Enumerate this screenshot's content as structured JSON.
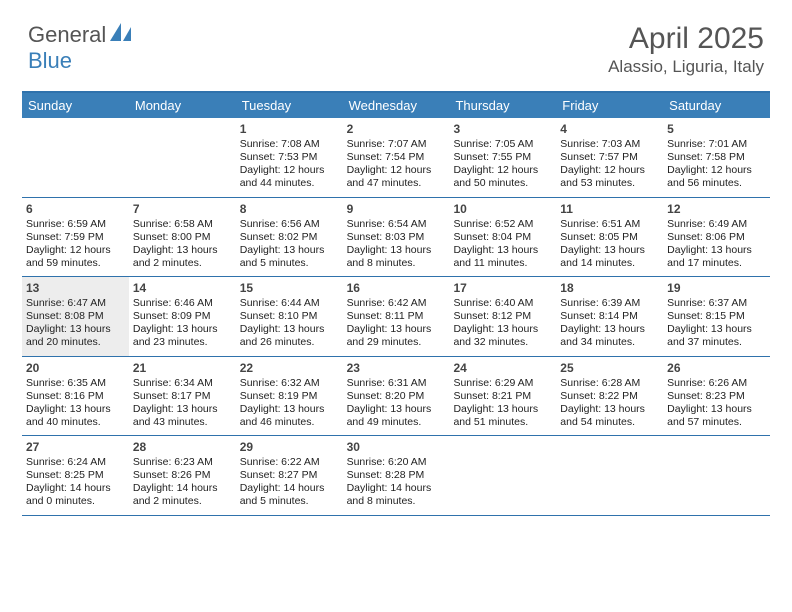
{
  "brand": {
    "part1": "General",
    "part2": "Blue"
  },
  "title": "April 2025",
  "location": "Alassio, Liguria, Italy",
  "colors": {
    "header_bg": "#3a7fb8",
    "border": "#2f72ac",
    "today_bg": "#ededed",
    "text": "#222222",
    "muted": "#555555",
    "white": "#ffffff"
  },
  "typography": {
    "title_fontsize": 30,
    "location_fontsize": 17,
    "dayname_fontsize": 13,
    "daynum_fontsize": 12,
    "info_fontsize": 10.5
  },
  "layout": {
    "columns": 7,
    "rows": 5
  },
  "daynames": [
    "Sunday",
    "Monday",
    "Tuesday",
    "Wednesday",
    "Thursday",
    "Friday",
    "Saturday"
  ],
  "today_day": 13,
  "weeks": [
    [
      {
        "day": null
      },
      {
        "day": null
      },
      {
        "day": 1,
        "sunrise": "7:08 AM",
        "sunset": "7:53 PM",
        "daylight": "12 hours and 44 minutes."
      },
      {
        "day": 2,
        "sunrise": "7:07 AM",
        "sunset": "7:54 PM",
        "daylight": "12 hours and 47 minutes."
      },
      {
        "day": 3,
        "sunrise": "7:05 AM",
        "sunset": "7:55 PM",
        "daylight": "12 hours and 50 minutes."
      },
      {
        "day": 4,
        "sunrise": "7:03 AM",
        "sunset": "7:57 PM",
        "daylight": "12 hours and 53 minutes."
      },
      {
        "day": 5,
        "sunrise": "7:01 AM",
        "sunset": "7:58 PM",
        "daylight": "12 hours and 56 minutes."
      }
    ],
    [
      {
        "day": 6,
        "sunrise": "6:59 AM",
        "sunset": "7:59 PM",
        "daylight": "12 hours and 59 minutes."
      },
      {
        "day": 7,
        "sunrise": "6:58 AM",
        "sunset": "8:00 PM",
        "daylight": "13 hours and 2 minutes."
      },
      {
        "day": 8,
        "sunrise": "6:56 AM",
        "sunset": "8:02 PM",
        "daylight": "13 hours and 5 minutes."
      },
      {
        "day": 9,
        "sunrise": "6:54 AM",
        "sunset": "8:03 PM",
        "daylight": "13 hours and 8 minutes."
      },
      {
        "day": 10,
        "sunrise": "6:52 AM",
        "sunset": "8:04 PM",
        "daylight": "13 hours and 11 minutes."
      },
      {
        "day": 11,
        "sunrise": "6:51 AM",
        "sunset": "8:05 PM",
        "daylight": "13 hours and 14 minutes."
      },
      {
        "day": 12,
        "sunrise": "6:49 AM",
        "sunset": "8:06 PM",
        "daylight": "13 hours and 17 minutes."
      }
    ],
    [
      {
        "day": 13,
        "sunrise": "6:47 AM",
        "sunset": "8:08 PM",
        "daylight": "13 hours and 20 minutes."
      },
      {
        "day": 14,
        "sunrise": "6:46 AM",
        "sunset": "8:09 PM",
        "daylight": "13 hours and 23 minutes."
      },
      {
        "day": 15,
        "sunrise": "6:44 AM",
        "sunset": "8:10 PM",
        "daylight": "13 hours and 26 minutes."
      },
      {
        "day": 16,
        "sunrise": "6:42 AM",
        "sunset": "8:11 PM",
        "daylight": "13 hours and 29 minutes."
      },
      {
        "day": 17,
        "sunrise": "6:40 AM",
        "sunset": "8:12 PM",
        "daylight": "13 hours and 32 minutes."
      },
      {
        "day": 18,
        "sunrise": "6:39 AM",
        "sunset": "8:14 PM",
        "daylight": "13 hours and 34 minutes."
      },
      {
        "day": 19,
        "sunrise": "6:37 AM",
        "sunset": "8:15 PM",
        "daylight": "13 hours and 37 minutes."
      }
    ],
    [
      {
        "day": 20,
        "sunrise": "6:35 AM",
        "sunset": "8:16 PM",
        "daylight": "13 hours and 40 minutes."
      },
      {
        "day": 21,
        "sunrise": "6:34 AM",
        "sunset": "8:17 PM",
        "daylight": "13 hours and 43 minutes."
      },
      {
        "day": 22,
        "sunrise": "6:32 AM",
        "sunset": "8:19 PM",
        "daylight": "13 hours and 46 minutes."
      },
      {
        "day": 23,
        "sunrise": "6:31 AM",
        "sunset": "8:20 PM",
        "daylight": "13 hours and 49 minutes."
      },
      {
        "day": 24,
        "sunrise": "6:29 AM",
        "sunset": "8:21 PM",
        "daylight": "13 hours and 51 minutes."
      },
      {
        "day": 25,
        "sunrise": "6:28 AM",
        "sunset": "8:22 PM",
        "daylight": "13 hours and 54 minutes."
      },
      {
        "day": 26,
        "sunrise": "6:26 AM",
        "sunset": "8:23 PM",
        "daylight": "13 hours and 57 minutes."
      }
    ],
    [
      {
        "day": 27,
        "sunrise": "6:24 AM",
        "sunset": "8:25 PM",
        "daylight": "14 hours and 0 minutes."
      },
      {
        "day": 28,
        "sunrise": "6:23 AM",
        "sunset": "8:26 PM",
        "daylight": "14 hours and 2 minutes."
      },
      {
        "day": 29,
        "sunrise": "6:22 AM",
        "sunset": "8:27 PM",
        "daylight": "14 hours and 5 minutes."
      },
      {
        "day": 30,
        "sunrise": "6:20 AM",
        "sunset": "8:28 PM",
        "daylight": "14 hours and 8 minutes."
      },
      {
        "day": null
      },
      {
        "day": null
      },
      {
        "day": null
      }
    ]
  ],
  "labels": {
    "sunrise": "Sunrise:",
    "sunset": "Sunset:",
    "daylight": "Daylight:"
  }
}
